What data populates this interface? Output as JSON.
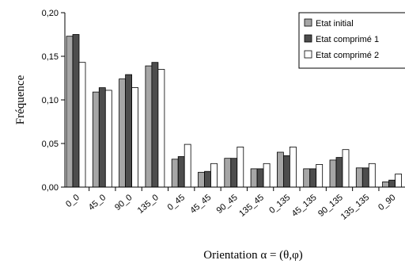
{
  "chart_data": {
    "type": "bar",
    "categories": [
      "0_0",
      "45_0",
      "90_0",
      "135_0",
      "0_45",
      "45_45",
      "90_45",
      "135_45",
      "0_135",
      "45_135",
      "90_135",
      "135_135",
      "0_90"
    ],
    "series": [
      {
        "name": "Etat initial",
        "color": "#a6a6a6",
        "values": [
          0.173,
          0.109,
          0.124,
          0.139,
          0.032,
          0.017,
          0.033,
          0.021,
          0.04,
          0.021,
          0.031,
          0.022,
          0.006
        ]
      },
      {
        "name": "Etat comprimé 1",
        "color": "#4d4d4d",
        "values": [
          0.175,
          0.114,
          0.129,
          0.143,
          0.035,
          0.018,
          0.033,
          0.021,
          0.036,
          0.021,
          0.034,
          0.022,
          0.008
        ]
      },
      {
        "name": "Etat comprimé 2",
        "color": "#ffffff",
        "values": [
          0.143,
          0.111,
          0.114,
          0.135,
          0.049,
          0.027,
          0.046,
          0.027,
          0.046,
          0.026,
          0.043,
          0.027,
          0.015
        ]
      }
    ],
    "yticks": [
      "0,00",
      "0,05",
      "0,10",
      "0,15",
      "0,20"
    ],
    "ylim": [
      0,
      0.2
    ],
    "xlabel": "Orientation α = (θ,φ)",
    "ylabel": "Fréquence",
    "legend_position": "top-right",
    "grid": false
  }
}
